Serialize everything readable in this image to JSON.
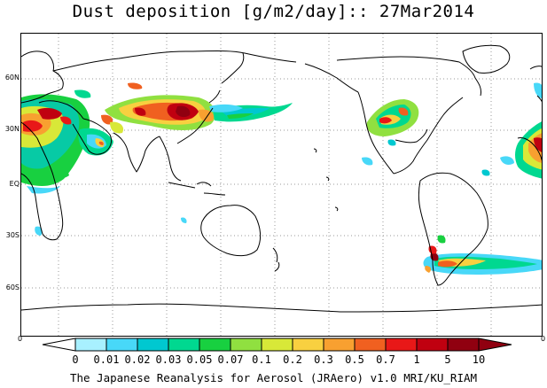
{
  "title": "Dust deposition [g/m2/day]:: 27Mar2014",
  "map": {
    "latitude_labels": [
      "60N",
      "30N",
      "EQ",
      "30S",
      "60S"
    ],
    "edge_labels": [
      "0",
      "0"
    ],
    "grid": "dotted",
    "projection": "cylindrical equidistant, centered on the Pacific",
    "dust_regions": [
      "North Africa / Sahara",
      "Arabian Peninsula",
      "Central Asia / Taklamakan / Gobi",
      "Eastern China",
      "North Pacific plume",
      "United States Great Plains",
      "North Atlantic (east of Caribbean)",
      "Patagonia / South Atlantic plume"
    ]
  },
  "colorbar": {
    "labels": [
      "0",
      "0.01",
      "0.02",
      "0.03",
      "0.05",
      "0.07",
      "0.1",
      "0.2",
      "0.3",
      "0.5",
      "0.7",
      "1",
      "5",
      "10"
    ],
    "colors": [
      "#ffffff",
      "#a8f0ff",
      "#48d8f8",
      "#00c8d0",
      "#00d890",
      "#18d040",
      "#90e040",
      "#d8e838",
      "#f8d040",
      "#f8a030",
      "#f06020",
      "#e81818",
      "#c00010",
      "#900010"
    ],
    "below_arrow_color": "#ffffff",
    "above_arrow_color": "#900010"
  },
  "footer": "The Japanese Reanalysis for Aerosol (JRAero) v1.0 MRI/KU_RIAM"
}
